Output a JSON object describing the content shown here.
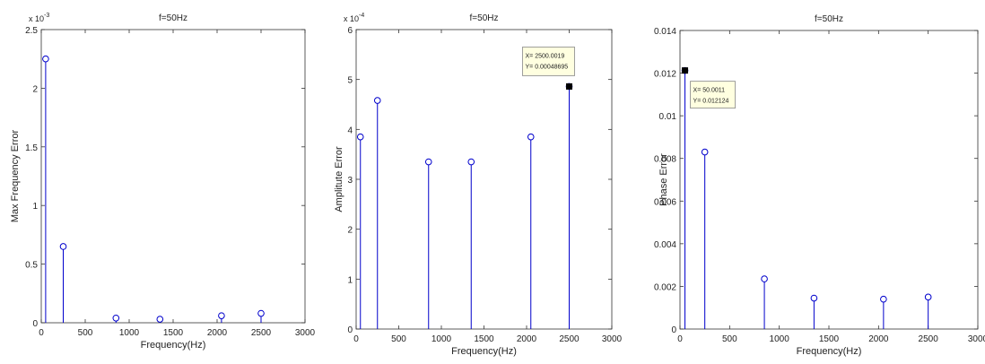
{
  "chart_data": [
    {
      "type": "stem",
      "title": "f=50Hz",
      "xlabel": "Frequency(Hz)",
      "ylabel": "Max Frequency Error",
      "xlim": [
        0,
        3000
      ],
      "ylim": [
        0,
        2.5
      ],
      "y_exponent_label": "x 10",
      "y_exponent": "-3",
      "xticks": [
        "0",
        "500",
        "1000",
        "1500",
        "2000",
        "2500",
        "3000"
      ],
      "yticks": [
        "0",
        "0.5",
        "1",
        "1.5",
        "2",
        "2.5"
      ],
      "x": [
        50,
        250,
        850,
        1350,
        2050,
        2500
      ],
      "y": [
        2.25,
        0.65,
        0.04,
        0.03,
        0.06,
        0.08
      ],
      "marker_color": "#0000cc",
      "datatip": null
    },
    {
      "type": "stem",
      "title": "f=50Hz",
      "xlabel": "Frequency(Hz)",
      "ylabel": "Amplitute Error",
      "xlim": [
        0,
        3000
      ],
      "ylim": [
        0,
        6
      ],
      "y_exponent_label": "x 10",
      "y_exponent": "-4",
      "xticks": [
        "0",
        "500",
        "1000",
        "1500",
        "2000",
        "2500",
        "3000"
      ],
      "yticks": [
        "0",
        "1",
        "2",
        "3",
        "4",
        "5",
        "6"
      ],
      "x": [
        50,
        250,
        850,
        1350,
        2050,
        2500
      ],
      "y": [
        3.85,
        4.58,
        3.35,
        3.35,
        3.85,
        4.86
      ],
      "marker_color": "#0000cc",
      "datatip": {
        "point_index": 5,
        "x_label": "X= 2500.0019",
        "y_label": "Y= 0.00048695"
      }
    },
    {
      "type": "stem",
      "title": "f=50Hz",
      "xlabel": "Frequency(Hz)",
      "ylabel": "Phase Error",
      "xlim": [
        0,
        3000
      ],
      "ylim": [
        0,
        0.014
      ],
      "y_exponent_label": "",
      "y_exponent": "",
      "xticks": [
        "0",
        "500",
        "1000",
        "1500",
        "2000",
        "2500",
        "3000"
      ],
      "yticks": [
        "0",
        "0.002",
        "0.004",
        "0.006",
        "0.008",
        "0.01",
        "0.012",
        "0.014"
      ],
      "x": [
        50,
        250,
        850,
        1350,
        2050,
        2500
      ],
      "y": [
        0.012124,
        0.0083,
        0.00235,
        0.00145,
        0.0014,
        0.0015
      ],
      "marker_color": "#0000cc",
      "datatip": {
        "point_index": 0,
        "x_label": "X= 50.0011",
        "y_label": "Y= 0.012124"
      }
    }
  ]
}
